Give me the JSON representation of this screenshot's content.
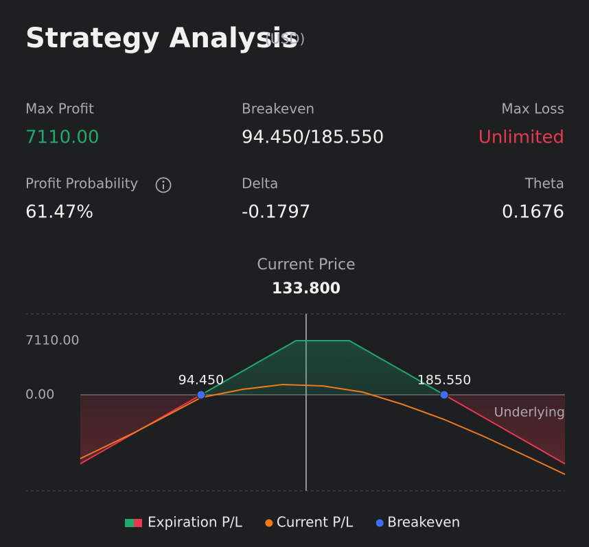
{
  "header": {
    "title": "Strategy Analysis",
    "currency": "(USD)"
  },
  "stats": [
    {
      "label": "Max Profit",
      "value": "7110.00"
    },
    {
      "label": "Breakeven",
      "value": "94.450/185.550"
    },
    {
      "label": "Max Loss",
      "value": "Unlimited"
    },
    {
      "label": "Profit Probability",
      "value": "61.47%"
    },
    {
      "label": "Delta",
      "value": "-0.1797"
    },
    {
      "label": "Theta",
      "value": "0.1676"
    }
  ],
  "chart_data": {
    "type": "line",
    "x_label": "Underlying",
    "current_price": {
      "label": "Current Price",
      "value": 133.8,
      "value_label": "133.800"
    },
    "xlim": [
      49.2,
      230.8
    ],
    "ylim": [
      -12600,
      10620
    ],
    "yticks": [
      {
        "value": 0,
        "label": "0.00"
      },
      {
        "value": 7110,
        "label": "7110.00"
      }
    ],
    "zero_line": true,
    "series": [
      {
        "name": "Expiration P/L",
        "color": "#1fa971",
        "negative_color": "#e8384f",
        "x": [
          49.2,
          94.45,
          130,
          150,
          185.55,
          230.8
        ],
        "values": [
          -9050,
          0,
          7110,
          7110,
          0,
          -9050
        ]
      },
      {
        "name": "Current P/L",
        "color": "#f07a1a",
        "x": [
          49.2,
          70,
          94.45,
          110,
          125,
          140,
          155,
          170,
          185.55,
          200,
          215,
          230.8
        ],
        "values": [
          -8370,
          -4860,
          -360,
          720,
          1350,
          1170,
          360,
          -1260,
          -3240,
          -5400,
          -7830,
          -10440
        ]
      },
      {
        "name": "Breakeven",
        "type": "scatter",
        "color": "#3d6ef5",
        "x": [
          94.45,
          185.55
        ],
        "x_labels": [
          "94.450",
          "185.550"
        ],
        "values": [
          0,
          0
        ]
      }
    ]
  }
}
